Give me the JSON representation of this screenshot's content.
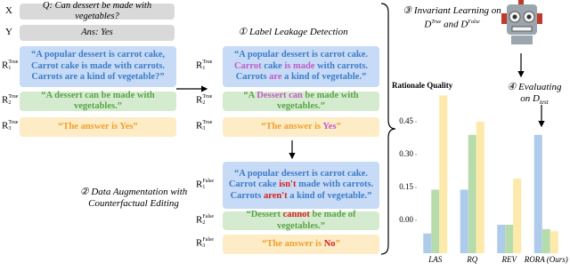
{
  "original": {
    "x_label": "X",
    "question": "Q: Can dessert be made with vegetables?",
    "y_label": "Y",
    "answer": "Ans: Yes",
    "rationales": [
      {
        "label": "R",
        "index": "1",
        "tag": "True",
        "fill": "#c7dbf6",
        "text_color": "#3d7cc9",
        "parts": [
          {
            "text": "“A popular dessert is carrot cake, Carrot cake is made with carrots. Carrots are a kind of vegetable?”"
          }
        ]
      },
      {
        "label": "R",
        "index": "2",
        "tag": "True",
        "fill": "#d5ebcf",
        "text_color": "#58a548",
        "parts": [
          {
            "text": "“A dessert can be made with vegetables.”"
          }
        ]
      },
      {
        "label": "R",
        "index": "3",
        "tag": "True",
        "fill": "#fdecc6",
        "text_color": "#efa02c",
        "parts": [
          {
            "text": "“The answer is Yes”"
          }
        ]
      }
    ]
  },
  "leakage": {
    "step": "①",
    "title": "Label Leakage Detection",
    "rationales": [
      {
        "label": "R",
        "index": "1",
        "tag": "True",
        "fill": "#c7dbf6",
        "text_color": "#3d7cc9",
        "parts": [
          {
            "text": "“A popular dessert is carrot cake. "
          },
          {
            "text": "Carrot",
            "color": "#c05cc8"
          },
          {
            "text": " cake "
          },
          {
            "text": "is made",
            "color": "#c05cc8"
          },
          {
            "text": " with carrots. Carrots "
          },
          {
            "text": "are",
            "color": "#c05cc8"
          },
          {
            "text": " a kind of vegetable.”"
          }
        ]
      },
      {
        "label": "R",
        "index": "2",
        "tag": "True",
        "fill": "#d5ebcf",
        "text_color": "#58a548",
        "parts": [
          {
            "text": "“A "
          },
          {
            "text": "Dessert can",
            "color": "#c05cc8"
          },
          {
            "text": " be made with vegetables.”"
          }
        ]
      },
      {
        "label": "R",
        "index": "3",
        "tag": "True",
        "fill": "#fdecc6",
        "text_color": "#efa02c",
        "parts": [
          {
            "text": "“The answer is "
          },
          {
            "text": "Yes",
            "color": "#c05cc8"
          },
          {
            "text": "”"
          }
        ]
      }
    ]
  },
  "augmentation": {
    "step": "②",
    "title_lines": [
      "Data Augmentation with",
      "Counterfactual Editing"
    ],
    "rationales": [
      {
        "label": "R",
        "index": "1",
        "tag": "False",
        "fill": "#c7dbf6",
        "text_color": "#3d7cc9",
        "parts": [
          {
            "text": "“A popular dessert is carrot cake. Carrot cake "
          },
          {
            "text": "isn't",
            "color": "#d42020"
          },
          {
            "text": " made with carrots. Carrots "
          },
          {
            "text": "aren't",
            "color": "#d42020"
          },
          {
            "text": " a kind of vegetable.”"
          }
        ]
      },
      {
        "label": "R",
        "index": "2",
        "tag": "False",
        "fill": "#d5ebcf",
        "text_color": "#58a548",
        "parts": [
          {
            "text": "“Dessert "
          },
          {
            "text": "cannot",
            "color": "#d42020"
          },
          {
            "text": " be made of vegetables.”"
          }
        ]
      },
      {
        "label": "R",
        "index": "3",
        "tag": "False",
        "fill": "#fdecc6",
        "text_color": "#efa02c",
        "parts": [
          {
            "text": "“The answer is "
          },
          {
            "text": "No",
            "color": "#d42020"
          },
          {
            "text": "”"
          }
        ]
      }
    ]
  },
  "invariant": {
    "step": "③",
    "text": "Invariant Learning on",
    "set": "D",
    "tag_a": "True",
    "joiner": "and",
    "tag_b": "False"
  },
  "evaluation": {
    "step": "④",
    "text": "Evaluating",
    "on": "on",
    "set": "D",
    "tag": "test"
  },
  "chart_data": {
    "type": "bar",
    "title": "Rationale Quality",
    "categories": [
      "LAS",
      "RQ",
      "REV",
      "RORA (Ours)"
    ],
    "series": [
      {
        "color": "#aecbec",
        "values": [
          -0.06,
          0.14,
          -0.02,
          0.39
        ]
      },
      {
        "color": "#b7dcab",
        "values": [
          0.14,
          0.39,
          -0.02,
          -0.04
        ]
      },
      {
        "color": "#fde9a9",
        "values": [
          0.57,
          0.45,
          0.19,
          -0.05
        ]
      }
    ],
    "ylim": [
      -0.15,
      0.6
    ],
    "yticks": [
      0.45,
      {
        "value": 0.3,
        "label": "0.30"
      },
      0.15,
      {
        "value": 0,
        "label": "0.00"
      }
    ]
  }
}
